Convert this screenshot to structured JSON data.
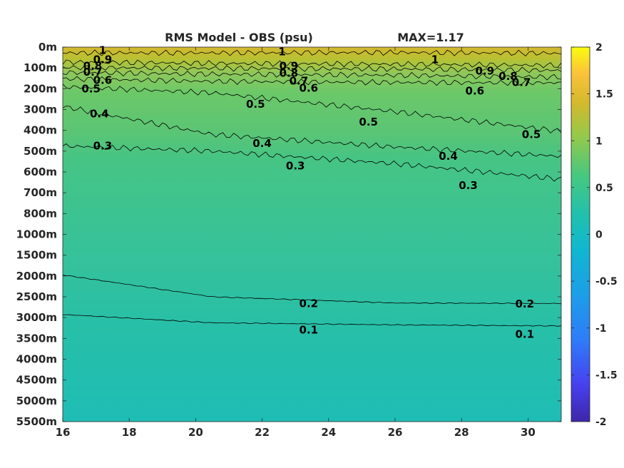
{
  "chart_data": {
    "type": "heatmap",
    "title": "RMS Model - OBS (psu)",
    "max_text": "MAX=1.17",
    "x": {
      "ticks": [
        16,
        18,
        20,
        22,
        24,
        26,
        28,
        30
      ],
      "range": [
        16,
        31
      ]
    },
    "y": {
      "ticks": [
        "0m",
        "100m",
        "200m",
        "300m",
        "400m",
        "500m",
        "600m",
        "700m",
        "800m",
        "1000m",
        "1500m",
        "2000m",
        "2500m",
        "3000m",
        "3500m",
        "4000m",
        "4500m",
        "5000m",
        "5500m"
      ]
    },
    "colorbar": {
      "range": [
        -2,
        2
      ],
      "ticks": [
        "2",
        "1.5",
        "1",
        "0.5",
        "0",
        "-0.5",
        "-1",
        "-1.5",
        "-2"
      ],
      "colormap": "parula"
    },
    "contour_levels": [
      0.1,
      0.2,
      0.3,
      0.4,
      0.5,
      0.6,
      0.7,
      0.8,
      0.9,
      1
    ],
    "contours": [
      {
        "level": 1,
        "y_index": [
          0.28,
          0.28,
          0.26,
          0.3
        ]
      },
      {
        "level": 0.9,
        "y_index": [
          0.72,
          0.78,
          0.82,
          0.88
        ]
      },
      {
        "level": 0.8,
        "y_index": [
          0.98,
          1.02,
          1.05,
          1.12
        ]
      },
      {
        "level": 0.7,
        "y_index": [
          1.22,
          1.3,
          1.35,
          1.45
        ]
      },
      {
        "level": 0.6,
        "y_index": [
          1.52,
          1.65,
          1.7,
          1.72
        ]
      },
      {
        "level": 0.5,
        "y_index": [
          1.9,
          2.2,
          3.1,
          4.05
        ]
      },
      {
        "level": 0.4,
        "y_index": [
          2.85,
          4.2,
          4.8,
          5.25
        ]
      },
      {
        "level": 0.3,
        "y_index": [
          4.75,
          5.0,
          5.6,
          6.35
        ]
      },
      {
        "level": 0.2,
        "y_index": [
          10.95,
          12.0,
          12.3,
          12.32
        ]
      },
      {
        "level": 0.1,
        "y_index": [
          12.85,
          13.25,
          13.35,
          13.4
        ]
      }
    ],
    "contour_labels": [
      {
        "text": "1",
        "x": 17.2,
        "y_index": 0.15
      },
      {
        "text": "0.9",
        "x": 17.2,
        "y_index": 0.6
      },
      {
        "text": "0.8",
        "x": 16.9,
        "y_index": 0.9
      },
      {
        "text": "0.7",
        "x": 16.9,
        "y_index": 1.2
      },
      {
        "text": "0.6",
        "x": 17.2,
        "y_index": 1.6
      },
      {
        "text": "0.5",
        "x": 16.85,
        "y_index": 2.0
      },
      {
        "text": "0.4",
        "x": 17.1,
        "y_index": 3.2
      },
      {
        "text": "0.3",
        "x": 17.2,
        "y_index": 4.75
      },
      {
        "text": "1",
        "x": 22.6,
        "y_index": 0.22
      },
      {
        "text": "0.9",
        "x": 22.8,
        "y_index": 0.9
      },
      {
        "text": "0.8",
        "x": 22.8,
        "y_index": 1.25
      },
      {
        "text": "0.7",
        "x": 23.1,
        "y_index": 1.62
      },
      {
        "text": "0.6",
        "x": 23.4,
        "y_index": 1.97
      },
      {
        "text": "0.5",
        "x": 21.8,
        "y_index": 2.75
      },
      {
        "text": "0.4",
        "x": 22.0,
        "y_index": 4.62
      },
      {
        "text": "0.3",
        "x": 23.0,
        "y_index": 5.7
      },
      {
        "text": "0.2",
        "x": 23.4,
        "y_index": 12.32
      },
      {
        "text": "0.1",
        "x": 23.4,
        "y_index": 13.6
      },
      {
        "text": "0.5",
        "x": 25.2,
        "y_index": 3.6
      },
      {
        "text": "1",
        "x": 27.2,
        "y_index": 0.6
      },
      {
        "text": "0.9",
        "x": 28.7,
        "y_index": 1.15
      },
      {
        "text": "0.8",
        "x": 29.4,
        "y_index": 1.4
      },
      {
        "text": "0.7",
        "x": 29.8,
        "y_index": 1.7
      },
      {
        "text": "0.6",
        "x": 28.4,
        "y_index": 2.1
      },
      {
        "text": "0.5",
        "x": 30.1,
        "y_index": 4.2
      },
      {
        "text": "0.4",
        "x": 27.6,
        "y_index": 5.25
      },
      {
        "text": "0.3",
        "x": 28.2,
        "y_index": 6.65
      },
      {
        "text": "0.2",
        "x": 29.9,
        "y_index": 12.35
      },
      {
        "text": "0.1",
        "x": 29.9,
        "y_index": 13.8
      }
    ]
  }
}
